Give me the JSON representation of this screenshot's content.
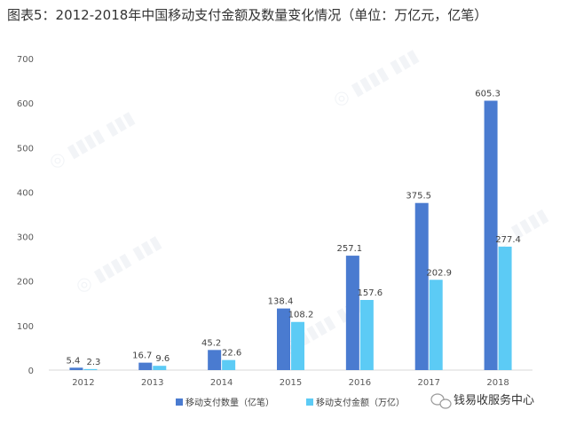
{
  "chart_data": {
    "type": "bar",
    "title": "图表5：2012-2018年中国移动支付金额及数量变化情况（单位：万亿元，亿笔）",
    "categories": [
      "2012",
      "2013",
      "2014",
      "2015",
      "2016",
      "2017",
      "2018"
    ],
    "series": [
      {
        "name": "移动支付数量（亿笔）",
        "color": "#4a7bd0",
        "values": [
          5.4,
          16.7,
          45.2,
          138.4,
          257.1,
          375.5,
          605.3
        ]
      },
      {
        "name": "移动支付金额（万亿）",
        "color": "#5ccbf5",
        "values": [
          2.3,
          9.6,
          22.6,
          108.2,
          157.6,
          202.9,
          277.4
        ]
      }
    ],
    "ylim": [
      0,
      700
    ],
    "yticks": [
      0,
      100,
      200,
      300,
      400,
      500,
      600,
      700
    ],
    "grid": false,
    "legend": "bottom"
  },
  "watermark": {
    "text": "钱易收服务中心",
    "icon": "wechat-icon"
  }
}
